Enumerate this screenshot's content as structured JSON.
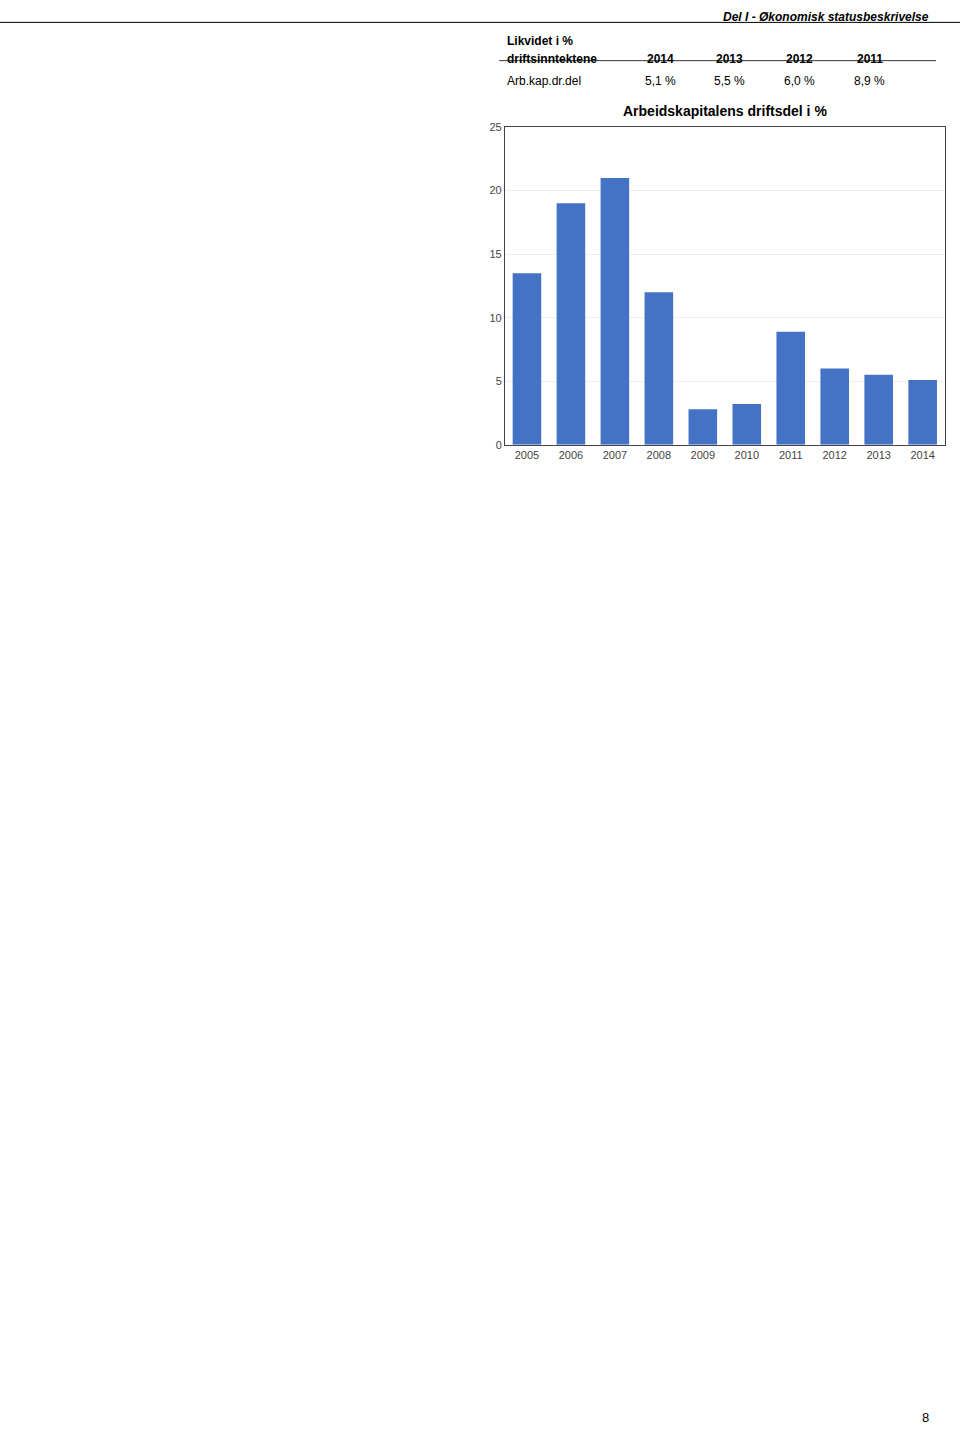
{
  "chart_data": {
    "type": "bar",
    "title": "Arbeidskapitalens driftsdel i %",
    "categories": [
      "2005",
      "2006",
      "2007",
      "2008",
      "2009",
      "2010",
      "2011",
      "2012",
      "2013",
      "2014"
    ],
    "values": [
      13.5,
      19.0,
      21.0,
      12.0,
      2.8,
      3.2,
      8.9,
      6.0,
      5.5,
      5.1
    ],
    "color": "#4472C4",
    "ylim": [
      0,
      25
    ],
    "yticks": [
      0,
      5,
      10,
      15,
      20,
      25
    ],
    "grid": true,
    "annotations": [
      "Del I - Økonomisk statusbeskrivelse",
      "Likvidet i %",
      "driftsinntektene",
      "2014",
      "2013",
      "2012",
      "2011",
      "Arb.kap.dr.del",
      "5,1 %",
      "5,5 %",
      "6,0 %",
      "8,9 %",
      "8"
    ]
  }
}
